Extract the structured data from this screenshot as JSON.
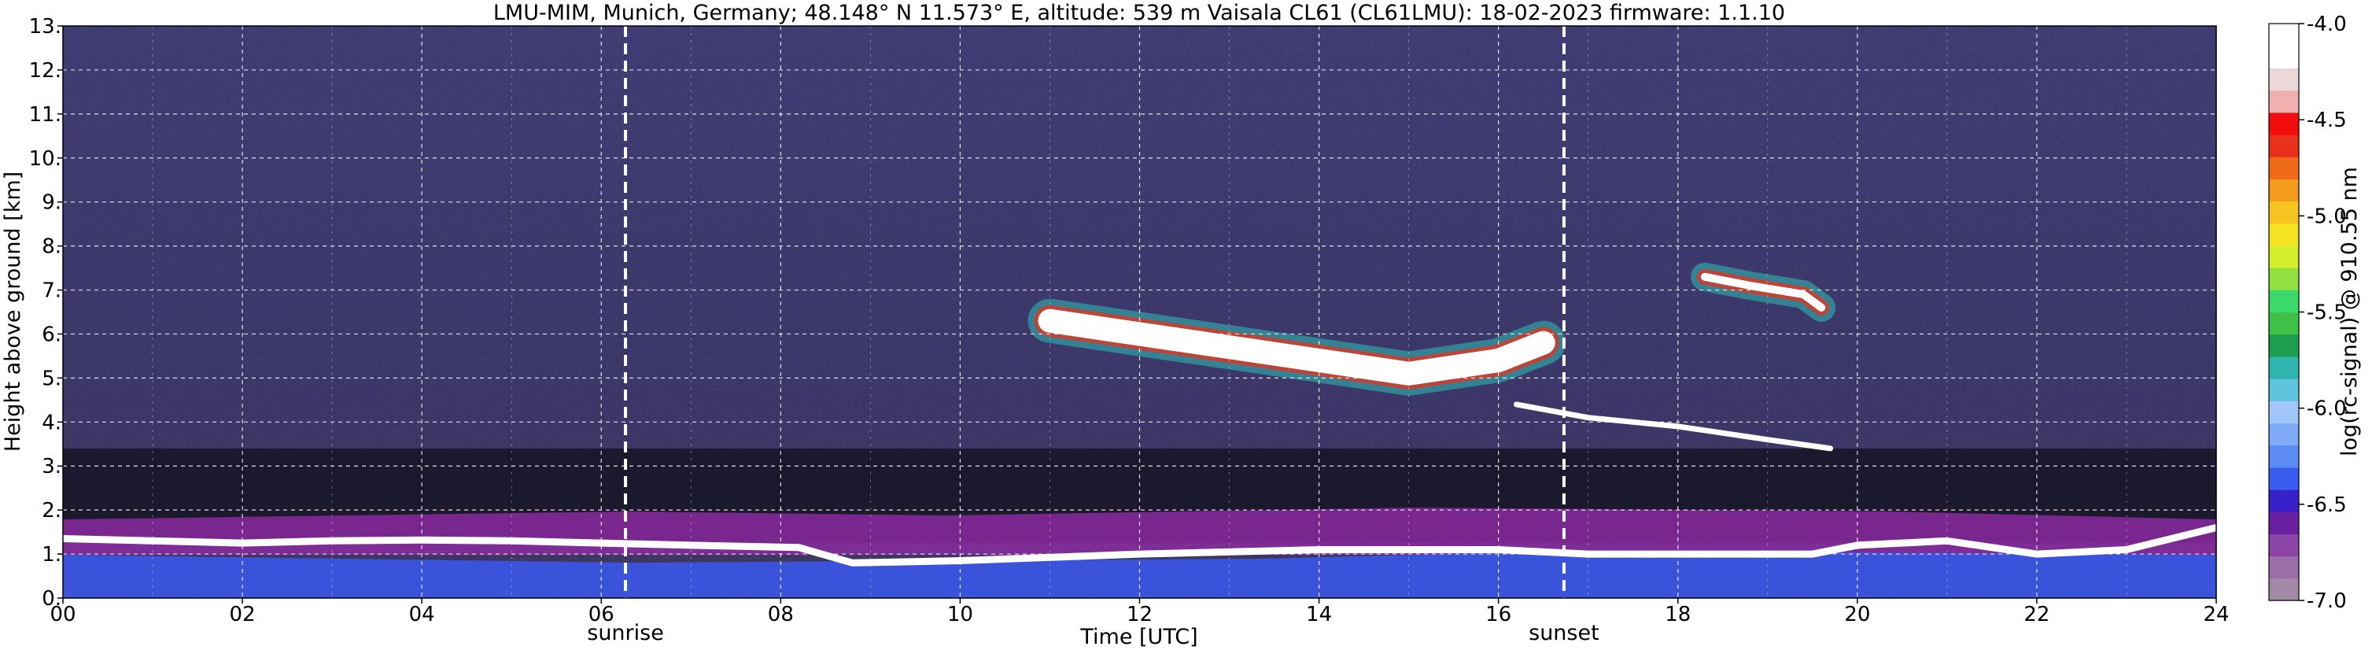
{
  "chart_data": [
    {
      "type": "heatmap",
      "title": "LMU-MIM, Munich, Germany; 48.148° N 11.573° E, altitude: 539 m    Vaisala CL61 (CL61LMU): 18-02-2023    firmware: 1.1.10",
      "xlabel": "Time [UTC]",
      "ylabel": "Height above ground [km]",
      "xlim": [
        0,
        24
      ],
      "ylim": [
        0,
        13
      ],
      "x_ticks": [
        0,
        2,
        4,
        6,
        8,
        10,
        12,
        14,
        16,
        18,
        20,
        22,
        24
      ],
      "x_tick_labels": [
        "00",
        "02",
        "04",
        "06",
        "08",
        "10",
        "12",
        "14",
        "16",
        "18",
        "20",
        "22",
        "24"
      ],
      "y_ticks": [
        0,
        1,
        2,
        3,
        4,
        5,
        6,
        7,
        8,
        9,
        10,
        11,
        12,
        13
      ],
      "y_tick_labels": [
        "0.",
        "1.",
        "2.",
        "3.",
        "4.",
        "5.",
        "6.",
        "7.",
        "8.",
        "9.",
        "10.",
        "11.",
        "12.",
        "13."
      ],
      "grid": true,
      "markers": [
        {
          "label": "sunrise",
          "time": 6.27
        },
        {
          "label": "sunset",
          "time": 16.73
        }
      ],
      "colorbar": {
        "label": "log(rc-signal) @ 910.55 nm",
        "range": [
          -7.0,
          -4.0
        ],
        "ticks": [
          -7.0,
          -6.5,
          -6.0,
          -5.5,
          -5.0,
          -4.5,
          -4.0
        ],
        "tick_labels": [
          "-7.0",
          "-6.5",
          "-6.0",
          "-5.5",
          "-5.0",
          "-4.5",
          "-4.0"
        ],
        "colors": [
          "#a28aa6",
          "#9a6fa8",
          "#8c44a6",
          "#6a1fa3",
          "#3a20c8",
          "#3b5cf0",
          "#5b8cf5",
          "#7eaaf8",
          "#a3c6f8",
          "#5fc4dc",
          "#2fb5b0",
          "#1f9e50",
          "#3fc046",
          "#39d96a",
          "#8fe040",
          "#d4ee2e",
          "#f2e423",
          "#f7c320",
          "#f49a1d",
          "#ef6a17",
          "#e8301a",
          "#f20d0d",
          "#f0b0b0",
          "#ecd8d8",
          "#ffffff",
          "#ffffff"
        ],
        "colors_from": -7.0,
        "colors_to": -4.0
      },
      "features": [
        {
          "description_units": "km",
          "kind": "boundary-layer",
          "points": [
            [
              0,
              1.35
            ],
            [
              1,
              1.3
            ],
            [
              2,
              1.25
            ],
            [
              3,
              1.3
            ],
            [
              4,
              1.32
            ],
            [
              5,
              1.3
            ],
            [
              6,
              1.25
            ],
            [
              7,
              1.2
            ],
            [
              8.2,
              1.15
            ],
            [
              8.8,
              0.8
            ],
            [
              10,
              0.85
            ],
            [
              12,
              1.0
            ],
            [
              14,
              1.1
            ],
            [
              16,
              1.1
            ],
            [
              17,
              1.0
            ],
            [
              19.5,
              1.0
            ],
            [
              20,
              1.2
            ],
            [
              21,
              1.3
            ],
            [
              22,
              1.0
            ],
            [
              23,
              1.1
            ],
            [
              24,
              1.6
            ]
          ]
        },
        {
          "kind": "cirrus-band",
          "points": [
            [
              11,
              6.3
            ],
            [
              12,
              6.0
            ],
            [
              13,
              5.7
            ],
            [
              14,
              5.4
            ],
            [
              15,
              5.1
            ],
            [
              16,
              5.4
            ],
            [
              16.5,
              5.8
            ]
          ]
        },
        {
          "kind": "descending-layer",
          "points": [
            [
              16.2,
              4.4
            ],
            [
              17,
              4.1
            ],
            [
              18,
              3.9
            ],
            [
              19,
              3.6
            ],
            [
              19.7,
              3.4
            ]
          ]
        },
        {
          "kind": "upper-cloud",
          "points": [
            [
              18.3,
              7.3
            ],
            [
              18.8,
              7.1
            ],
            [
              19.4,
              6.9
            ],
            [
              19.6,
              6.6
            ]
          ]
        }
      ]
    }
  ]
}
